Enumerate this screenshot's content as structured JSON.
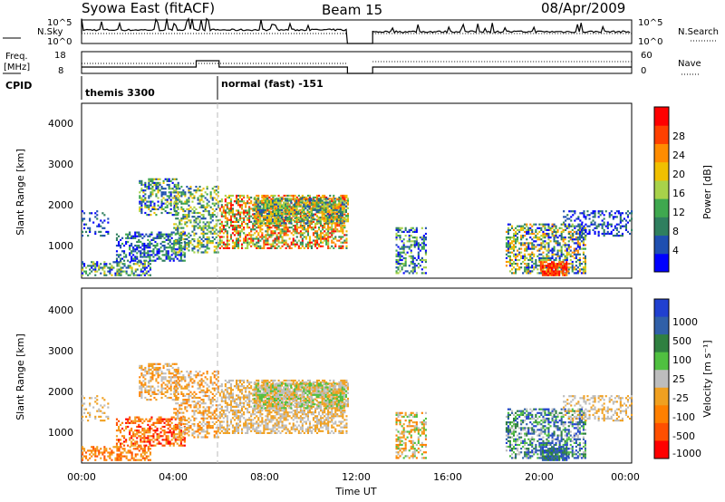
{
  "header": {
    "station": "Syowa East (fitACF)",
    "beam": "Beam 15",
    "date": "08/Apr/2009"
  },
  "top_panel": {
    "left_label": "N.Sky",
    "left_ticks": [
      "10^5",
      "10^0"
    ],
    "right_label": "N.Search",
    "right_ticks": [
      "10^5",
      "10^0"
    ]
  },
  "freq_panel": {
    "left_label_1": "Freq.",
    "left_label_2": "[MHz]",
    "left_ticks": [
      "18",
      "8"
    ],
    "right_label": "Nave",
    "right_ticks": [
      "60",
      "0"
    ]
  },
  "cpid": {
    "label": "CPID",
    "modes": [
      "themis 3300",
      "normal (fast) -151"
    ]
  },
  "colors": {
    "power": [
      "#0000ff",
      "#1f4fb0",
      "#2f7f5f",
      "#3fa84f",
      "#a8d24a",
      "#f0c000",
      "#ff8c00",
      "#ff4000",
      "#ff0000"
    ],
    "velocity": [
      "#2040d0",
      "#3060a8",
      "#2f8040",
      "#50c040",
      "#bdbdbd",
      "#f0a020",
      "#ff8000",
      "#ff5000",
      "#ff0000"
    ]
  },
  "chart_data": [
    {
      "type": "heatmap",
      "panel": "power",
      "ylabel": "Slant Range [km]",
      "y_ticks": [
        "1000",
        "2000",
        "3000",
        "4000"
      ],
      "ylim": [
        300,
        4500
      ],
      "colorbar_label": "Power [dB]",
      "colorbar_ticks": [
        "4",
        "8",
        "12",
        "16",
        "20",
        "24",
        "28"
      ]
    },
    {
      "type": "heatmap",
      "panel": "velocity",
      "ylabel": "Slant Range [km]",
      "y_ticks": [
        "1000",
        "2000",
        "3000",
        "4000"
      ],
      "ylim": [
        300,
        4500
      ],
      "colorbar_label": "Velocity [m s⁻¹]",
      "colorbar_ticks": [
        "1000",
        "500",
        "100",
        "25",
        "-25",
        "-100",
        "-500",
        "-1000"
      ]
    }
  ],
  "x_axis": {
    "label": "Time UT",
    "ticks": [
      "00:00",
      "04:00",
      "08:00",
      "12:00",
      "16:00",
      "20:00",
      "00:00"
    ]
  }
}
